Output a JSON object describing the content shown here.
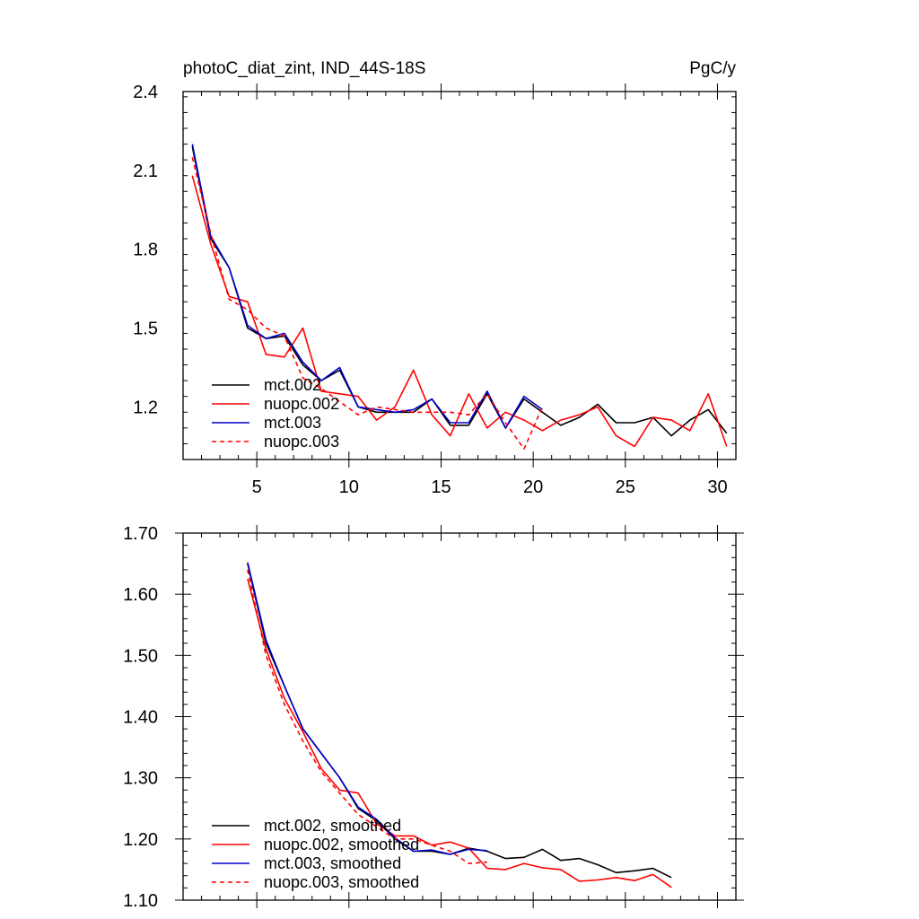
{
  "chart_data": [
    {
      "type": "line",
      "title": "photoC_diat_zint, IND_44S-18S",
      "units": "PgC/y",
      "xlabel": "",
      "ylabel": "",
      "xlim": [
        1,
        31
      ],
      "ylim": [
        1.0,
        2.4
      ],
      "xticks": [
        5,
        10,
        15,
        20,
        25,
        30
      ],
      "yticks": [
        1.2,
        1.5,
        1.8,
        2.1,
        2.4
      ],
      "ytick_labels": [
        "1.2",
        "1.5",
        "1.8",
        "2.1",
        "2.4"
      ],
      "legend": [
        "mct.002",
        "nuopc.002",
        "mct.003",
        "nuopc.003"
      ],
      "legend_placement": "bottom-left",
      "series": [
        {
          "name": "mct.002",
          "color": "#000000",
          "dash": false,
          "x": [
            1.5,
            2.5,
            3.5,
            4.5,
            5.5,
            6.5,
            7.5,
            8.5,
            9.5,
            10.5,
            11.5,
            12.5,
            13.5,
            14.5,
            15.5,
            16.5,
            17.5,
            18.5,
            19.5,
            20.5,
            21.5,
            22.5,
            23.5,
            24.5,
            25.5,
            26.5,
            27.5,
            28.5,
            29.5,
            30.5
          ],
          "values": [
            2.19,
            1.84,
            1.73,
            1.5,
            1.46,
            1.47,
            1.36,
            1.3,
            1.34,
            1.2,
            1.18,
            1.18,
            1.18,
            1.23,
            1.13,
            1.13,
            1.25,
            1.12,
            1.23,
            1.18,
            1.13,
            1.16,
            1.21,
            1.14,
            1.14,
            1.16,
            1.09,
            1.15,
            1.19,
            1.1
          ]
        },
        {
          "name": "nuopc.002",
          "color": "#ff0000",
          "dash": false,
          "x": [
            1.5,
            2.5,
            3.5,
            4.5,
            5.5,
            6.5,
            7.5,
            8.5,
            9.5,
            10.5,
            11.5,
            12.5,
            13.5,
            14.5,
            15.5,
            16.5,
            17.5,
            18.5,
            19.5,
            20.5,
            21.5,
            22.5,
            23.5,
            24.5,
            25.5,
            26.5,
            27.5,
            28.5,
            29.5,
            30.5
          ],
          "values": [
            2.08,
            1.82,
            1.62,
            1.6,
            1.4,
            1.39,
            1.5,
            1.26,
            1.25,
            1.24,
            1.15,
            1.2,
            1.34,
            1.17,
            1.09,
            1.25,
            1.12,
            1.18,
            1.15,
            1.11,
            1.15,
            1.17,
            1.2,
            1.09,
            1.05,
            1.16,
            1.15,
            1.11,
            1.25,
            1.05
          ]
        },
        {
          "name": "mct.003",
          "color": "#0000cc",
          "dash": false,
          "x": [
            1.5,
            2.5,
            3.5,
            4.5,
            5.5,
            6.5,
            7.5,
            8.5,
            9.5,
            10.5,
            11.5,
            12.5,
            13.5,
            14.5,
            15.5,
            16.5,
            17.5,
            18.5,
            19.5,
            20.5
          ],
          "values": [
            2.2,
            1.85,
            1.73,
            1.51,
            1.46,
            1.48,
            1.37,
            1.3,
            1.35,
            1.2,
            1.19,
            1.18,
            1.19,
            1.23,
            1.14,
            1.14,
            1.26,
            1.12,
            1.24,
            1.19
          ]
        },
        {
          "name": "nuopc.003",
          "color": "#ff0000",
          "dash": true,
          "x": [
            1.5,
            2.5,
            3.5,
            4.5,
            5.5,
            6.5,
            7.5,
            8.5,
            9.5,
            10.5,
            11.5,
            12.5,
            13.5,
            14.5,
            15.5,
            16.5,
            17.5,
            18.5,
            19.5,
            20.5
          ],
          "values": [
            2.15,
            1.86,
            1.61,
            1.57,
            1.5,
            1.47,
            1.31,
            1.27,
            1.22,
            1.17,
            1.2,
            1.19,
            1.18,
            1.18,
            1.18,
            1.17,
            1.25,
            1.14,
            1.04,
            1.2
          ]
        }
      ]
    },
    {
      "type": "line",
      "title": "",
      "xlabel": "",
      "ylabel": "",
      "xlim": [
        1,
        31
      ],
      "ylim": [
        1.1,
        1.7
      ],
      "xticks": [
        5,
        10,
        15,
        20,
        25,
        30
      ],
      "yticks": [
        1.1,
        1.2,
        1.3,
        1.4,
        1.5,
        1.6,
        1.7
      ],
      "ytick_labels": [
        "1.10",
        "1.20",
        "1.30",
        "1.40",
        "1.50",
        "1.60",
        "1.70"
      ],
      "legend": [
        "mct.002, smoothed",
        "nuopc.002, smoothed",
        "mct.003, smoothed",
        "nuopc.003, smoothed"
      ],
      "legend_placement": "bottom-left",
      "series": [
        {
          "name": "mct.002, smoothed",
          "color": "#000000",
          "dash": false,
          "x": [
            4.5,
            5.5,
            6.5,
            7.5,
            8.5,
            9.5,
            10.5,
            11.5,
            12.5,
            13.5,
            14.5,
            15.5,
            16.5,
            17.5,
            18.5,
            19.5,
            20.5,
            21.5,
            22.5,
            23.5,
            24.5,
            25.5,
            26.5,
            27.5
          ],
          "values": [
            1.65,
            1.52,
            1.45,
            1.38,
            1.34,
            1.3,
            1.25,
            1.23,
            1.2,
            1.18,
            1.18,
            1.175,
            1.185,
            1.18,
            1.168,
            1.17,
            1.183,
            1.165,
            1.168,
            1.158,
            1.145,
            1.148,
            1.152,
            1.137
          ]
        },
        {
          "name": "nuopc.002, smoothed",
          "color": "#ff0000",
          "dash": false,
          "x": [
            4.5,
            5.5,
            6.5,
            7.5,
            8.5,
            9.5,
            10.5,
            11.5,
            12.5,
            13.5,
            14.5,
            15.5,
            16.5,
            17.5,
            18.5,
            19.5,
            20.5,
            21.5,
            22.5,
            23.5,
            24.5,
            25.5,
            26.5,
            27.5
          ],
          "values": [
            1.625,
            1.51,
            1.43,
            1.375,
            1.315,
            1.28,
            1.275,
            1.225,
            1.205,
            1.205,
            1.19,
            1.195,
            1.185,
            1.152,
            1.15,
            1.16,
            1.153,
            1.15,
            1.131,
            1.133,
            1.137,
            1.132,
            1.142,
            1.121
          ]
        },
        {
          "name": "mct.003, smoothed",
          "color": "#0000cc",
          "dash": false,
          "x": [
            4.5,
            5.5,
            6.5,
            7.5,
            8.5,
            9.5,
            10.5,
            11.5,
            12.5,
            13.5,
            14.5,
            15.5,
            16.5,
            17.5
          ],
          "values": [
            1.652,
            1.525,
            1.45,
            1.38,
            1.34,
            1.3,
            1.252,
            1.232,
            1.202,
            1.18,
            1.182,
            1.175,
            1.183,
            1.181
          ]
        },
        {
          "name": "nuopc.003, smoothed",
          "color": "#ff0000",
          "dash": true,
          "x": [
            4.5,
            5.5,
            6.5,
            7.5,
            8.5,
            9.5,
            10.5,
            11.5,
            12.5,
            13.5,
            14.5,
            15.5,
            16.5,
            17.5
          ],
          "values": [
            1.64,
            1.5,
            1.42,
            1.36,
            1.31,
            1.275,
            1.24,
            1.22,
            1.2,
            1.2,
            1.19,
            1.18,
            1.16,
            1.162
          ]
        }
      ]
    }
  ]
}
